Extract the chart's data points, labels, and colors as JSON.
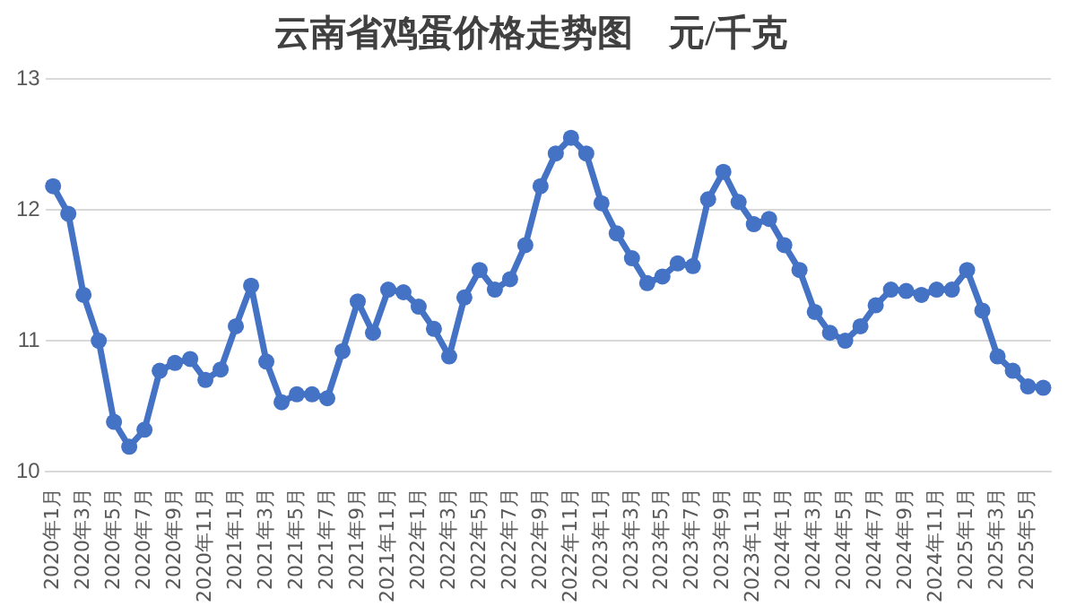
{
  "chart_data": {
    "type": "line",
    "title": "云南省鸡蛋价格走势图    元/千克",
    "categories": [
      "2020年1月",
      null,
      "2020年3月",
      null,
      "2020年5月",
      null,
      "2020年7月",
      null,
      "2020年9月",
      null,
      "2020年11月",
      null,
      "2021年1月",
      null,
      "2021年3月",
      null,
      "2021年5月",
      null,
      "2021年7月",
      null,
      "2021年9月",
      null,
      "2021年11月",
      null,
      "2022年1月",
      null,
      "2022年3月",
      null,
      "2022年5月",
      null,
      "2022年7月",
      null,
      "2022年9月",
      null,
      "2022年11月",
      null,
      "2023年1月",
      null,
      "2023年3月",
      null,
      "2023年5月",
      null,
      "2023年7月",
      null,
      "2023年9月",
      null,
      "2023年11月",
      null,
      "2024年1月",
      null,
      "2024年3月",
      null,
      "2024年5月",
      null,
      "2024年7月",
      null,
      "2024年9月",
      null,
      "2024年11月",
      null,
      "2025年1月",
      null,
      "2025年3月",
      null,
      "2025年5月",
      null
    ],
    "series": [
      {
        "color": "#4472c4",
        "values": [
          12.18,
          11.97,
          11.35,
          11.0,
          10.38,
          10.19,
          10.32,
          10.77,
          10.83,
          10.86,
          10.7,
          10.78,
          11.11,
          11.42,
          10.84,
          10.53,
          10.59,
          10.59,
          10.56,
          10.92,
          11.3,
          11.06,
          11.39,
          11.37,
          11.26,
          11.09,
          10.88,
          11.33,
          11.54,
          11.39,
          11.47,
          11.73,
          12.18,
          12.43,
          12.55,
          12.43,
          12.05,
          11.82,
          11.63,
          11.44,
          11.49,
          11.59,
          11.57,
          12.08,
          12.29,
          12.06,
          11.89,
          11.93,
          11.73,
          11.54,
          11.22,
          11.06,
          11.0,
          11.11,
          11.27,
          11.39,
          11.38,
          11.35,
          11.39,
          11.39,
          11.54,
          11.23,
          10.88,
          10.77,
          10.65,
          10.64
        ]
      }
    ],
    "ylim": [
      10,
      13
    ],
    "yticks": [
      10,
      11,
      12,
      13
    ],
    "grid": "y",
    "marker": "circle",
    "line_style": "solid",
    "legend": false
  }
}
